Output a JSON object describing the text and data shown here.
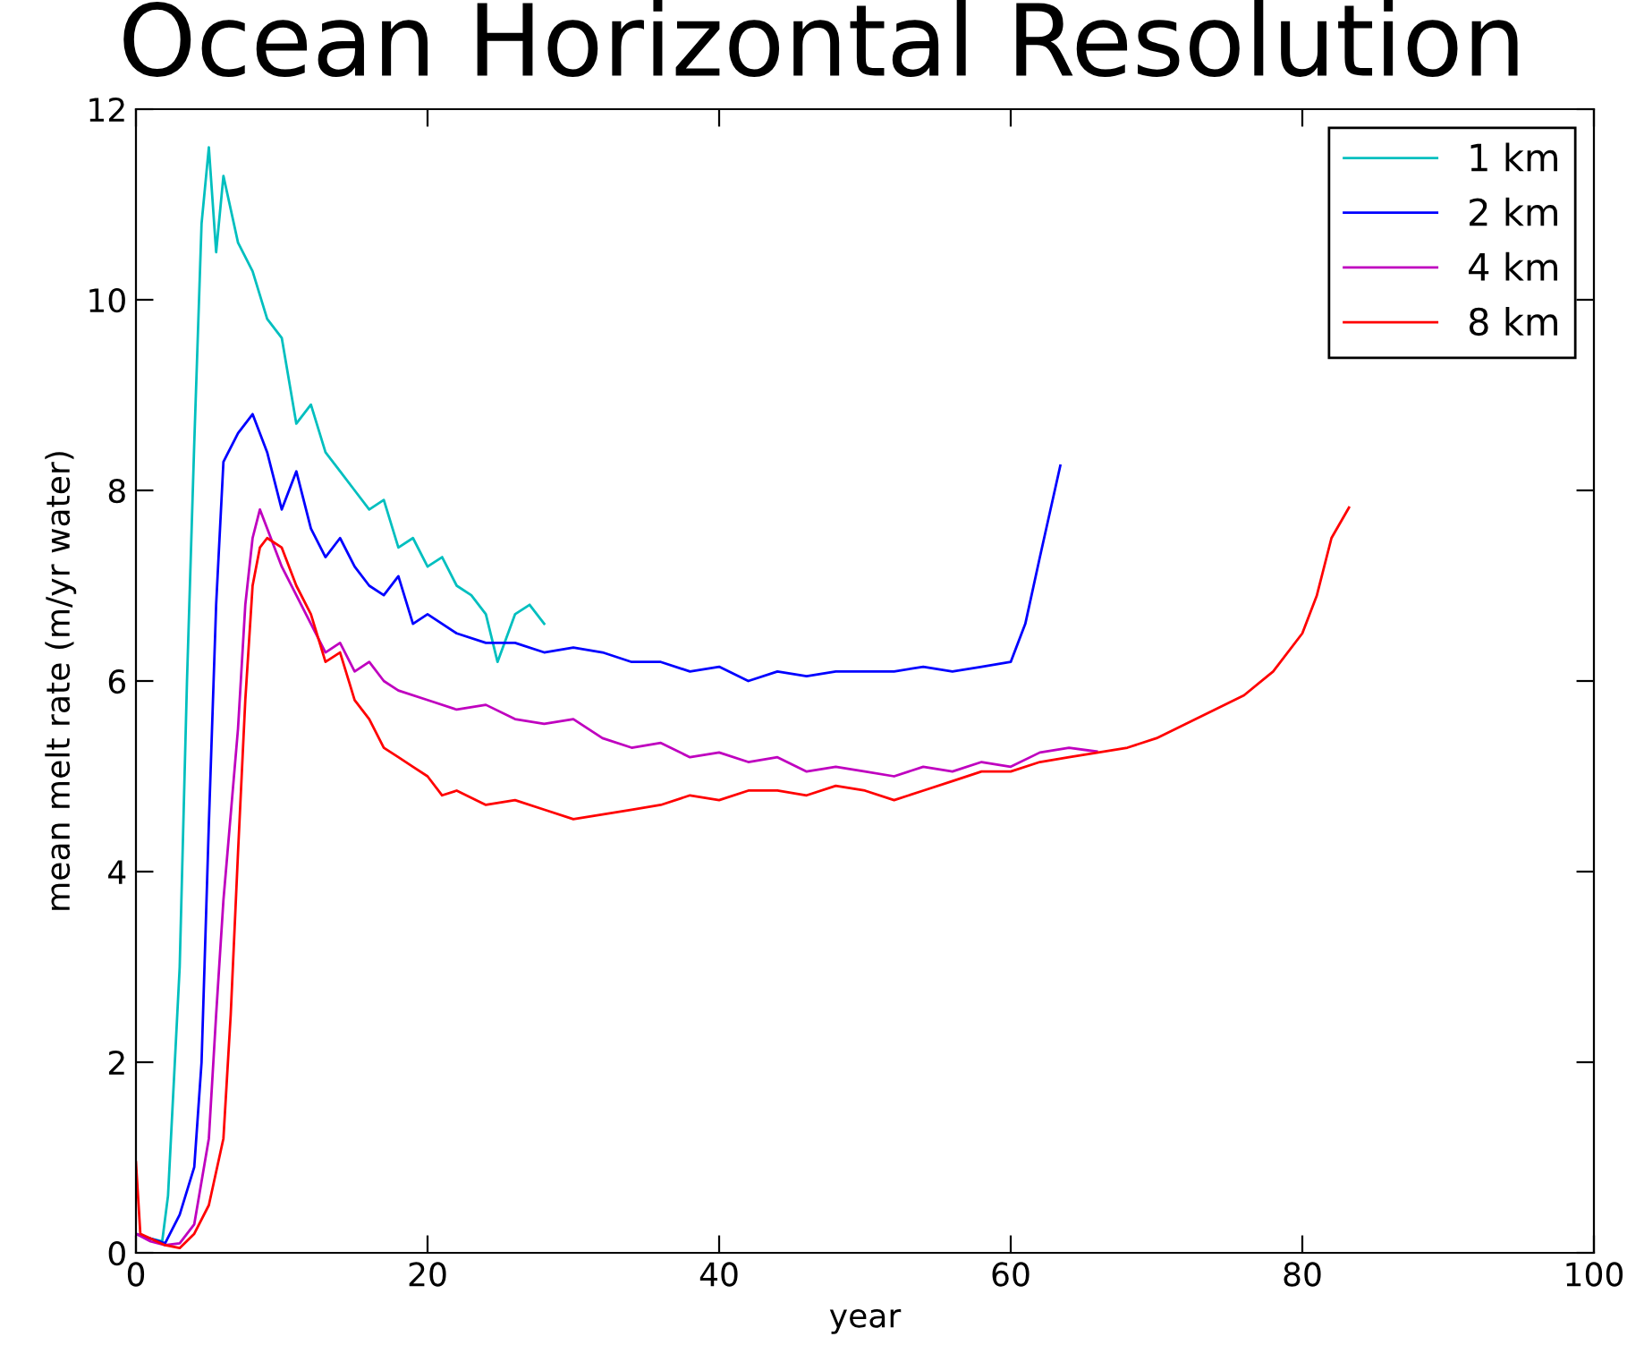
{
  "chart_data": {
    "type": "line",
    "title": "Ocean Horizontal Resolution",
    "xlabel": "year",
    "ylabel": "mean melt rate (m/yr water)",
    "xlim": [
      0,
      100
    ],
    "ylim": [
      0,
      12
    ],
    "xticks": [
      0,
      20,
      40,
      60,
      80,
      100
    ],
    "yticks": [
      0,
      2,
      4,
      6,
      8,
      10,
      12
    ],
    "grid": false,
    "legend": "top right",
    "line_style": "solid",
    "series": [
      {
        "name": "1 km",
        "color": "#00bfbf",
        "x": [
          1,
          1.8,
          2.2,
          3,
          3.5,
          4,
          4.5,
          5,
          5.5,
          6,
          7,
          8,
          9,
          10,
          11,
          12,
          13,
          14,
          15,
          16,
          17,
          18,
          19,
          20,
          21,
          22,
          23,
          24,
          24.8,
          26,
          27,
          28
        ],
        "values": [
          0.15,
          0.12,
          0.6,
          3,
          6,
          8.5,
          10.8,
          11.6,
          10.5,
          11.3,
          10.6,
          10.3,
          9.8,
          9.6,
          8.7,
          8.9,
          8.4,
          8.2,
          8.0,
          7.8,
          7.9,
          7.4,
          7.5,
          7.2,
          7.3,
          7.0,
          6.9,
          6.7,
          6.2,
          6.7,
          6.8,
          6.6
        ]
      },
      {
        "name": "2 km",
        "color": "#0000ff",
        "x": [
          0,
          2,
          3,
          4,
          4.5,
          5,
          5.5,
          6,
          7,
          8,
          9,
          10,
          11,
          12,
          13,
          14,
          15,
          16,
          17,
          18,
          19,
          20,
          22,
          24,
          26,
          28,
          30,
          32,
          34,
          36,
          38,
          40,
          42,
          44,
          46,
          48,
          50,
          52,
          54,
          56,
          58,
          60,
          61,
          62,
          63.4
        ],
        "values": [
          0.2,
          0.1,
          0.4,
          0.9,
          2,
          4.5,
          6.8,
          8.3,
          8.6,
          8.8,
          8.4,
          7.8,
          8.2,
          7.6,
          7.3,
          7.5,
          7.2,
          7.0,
          6.9,
          7.1,
          6.6,
          6.7,
          6.5,
          6.4,
          6.4,
          6.3,
          6.35,
          6.3,
          6.2,
          6.2,
          6.1,
          6.15,
          6.0,
          6.1,
          6.05,
          6.1,
          6.1,
          6.1,
          6.15,
          6.1,
          6.15,
          6.2,
          6.6,
          7.3,
          8.26
        ]
      },
      {
        "name": "4 km",
        "color": "#bf00bf",
        "x": [
          0,
          1,
          2,
          3,
          4,
          5,
          5.5,
          6,
          7,
          7.5,
          8,
          8.5,
          9,
          10,
          11,
          12,
          13,
          14,
          15,
          16,
          17,
          18,
          20,
          22,
          24,
          26,
          28,
          30,
          32,
          34,
          36,
          38,
          40,
          42,
          44,
          46,
          48,
          50,
          52,
          54,
          56,
          58,
          60,
          62,
          64,
          65.9
        ],
        "values": [
          0.2,
          0.12,
          0.08,
          0.1,
          0.3,
          1.2,
          2.5,
          3.7,
          5.5,
          6.8,
          7.5,
          7.8,
          7.6,
          7.2,
          6.9,
          6.6,
          6.3,
          6.4,
          6.1,
          6.2,
          6.0,
          5.9,
          5.8,
          5.7,
          5.75,
          5.6,
          5.55,
          5.6,
          5.4,
          5.3,
          5.35,
          5.2,
          5.25,
          5.15,
          5.2,
          5.05,
          5.1,
          5.05,
          5.0,
          5.1,
          5.05,
          5.15,
          5.1,
          5.25,
          5.3,
          5.26
        ]
      },
      {
        "name": "8 km",
        "color": "#ff0000",
        "x": [
          0,
          0.3,
          1,
          2,
          3,
          4,
          5,
          6,
          6.5,
          7,
          7.5,
          8,
          8.5,
          9,
          10,
          11,
          12,
          13,
          14,
          15,
          16,
          17,
          18,
          19,
          20,
          21,
          22,
          24,
          26,
          28,
          30,
          32,
          34,
          36,
          38,
          40,
          42,
          44,
          46,
          48,
          50,
          52,
          54,
          56,
          58,
          60,
          62,
          64,
          66,
          68,
          70,
          72,
          74,
          76,
          78,
          80,
          81,
          82,
          83.2
        ],
        "values": [
          0.95,
          0.2,
          0.15,
          0.08,
          0.05,
          0.2,
          0.5,
          1.2,
          2.5,
          4.2,
          5.8,
          7.0,
          7.4,
          7.5,
          7.4,
          7.0,
          6.7,
          6.2,
          6.3,
          5.8,
          5.6,
          5.3,
          5.2,
          5.1,
          5.0,
          4.8,
          4.85,
          4.7,
          4.75,
          4.65,
          4.55,
          4.6,
          4.65,
          4.7,
          4.8,
          4.75,
          4.85,
          4.85,
          4.8,
          4.9,
          4.85,
          4.75,
          4.85,
          4.95,
          5.05,
          5.05,
          5.15,
          5.2,
          5.25,
          5.3,
          5.4,
          5.55,
          5.7,
          5.85,
          6.1,
          6.5,
          6.9,
          7.5,
          7.82
        ]
      }
    ]
  }
}
